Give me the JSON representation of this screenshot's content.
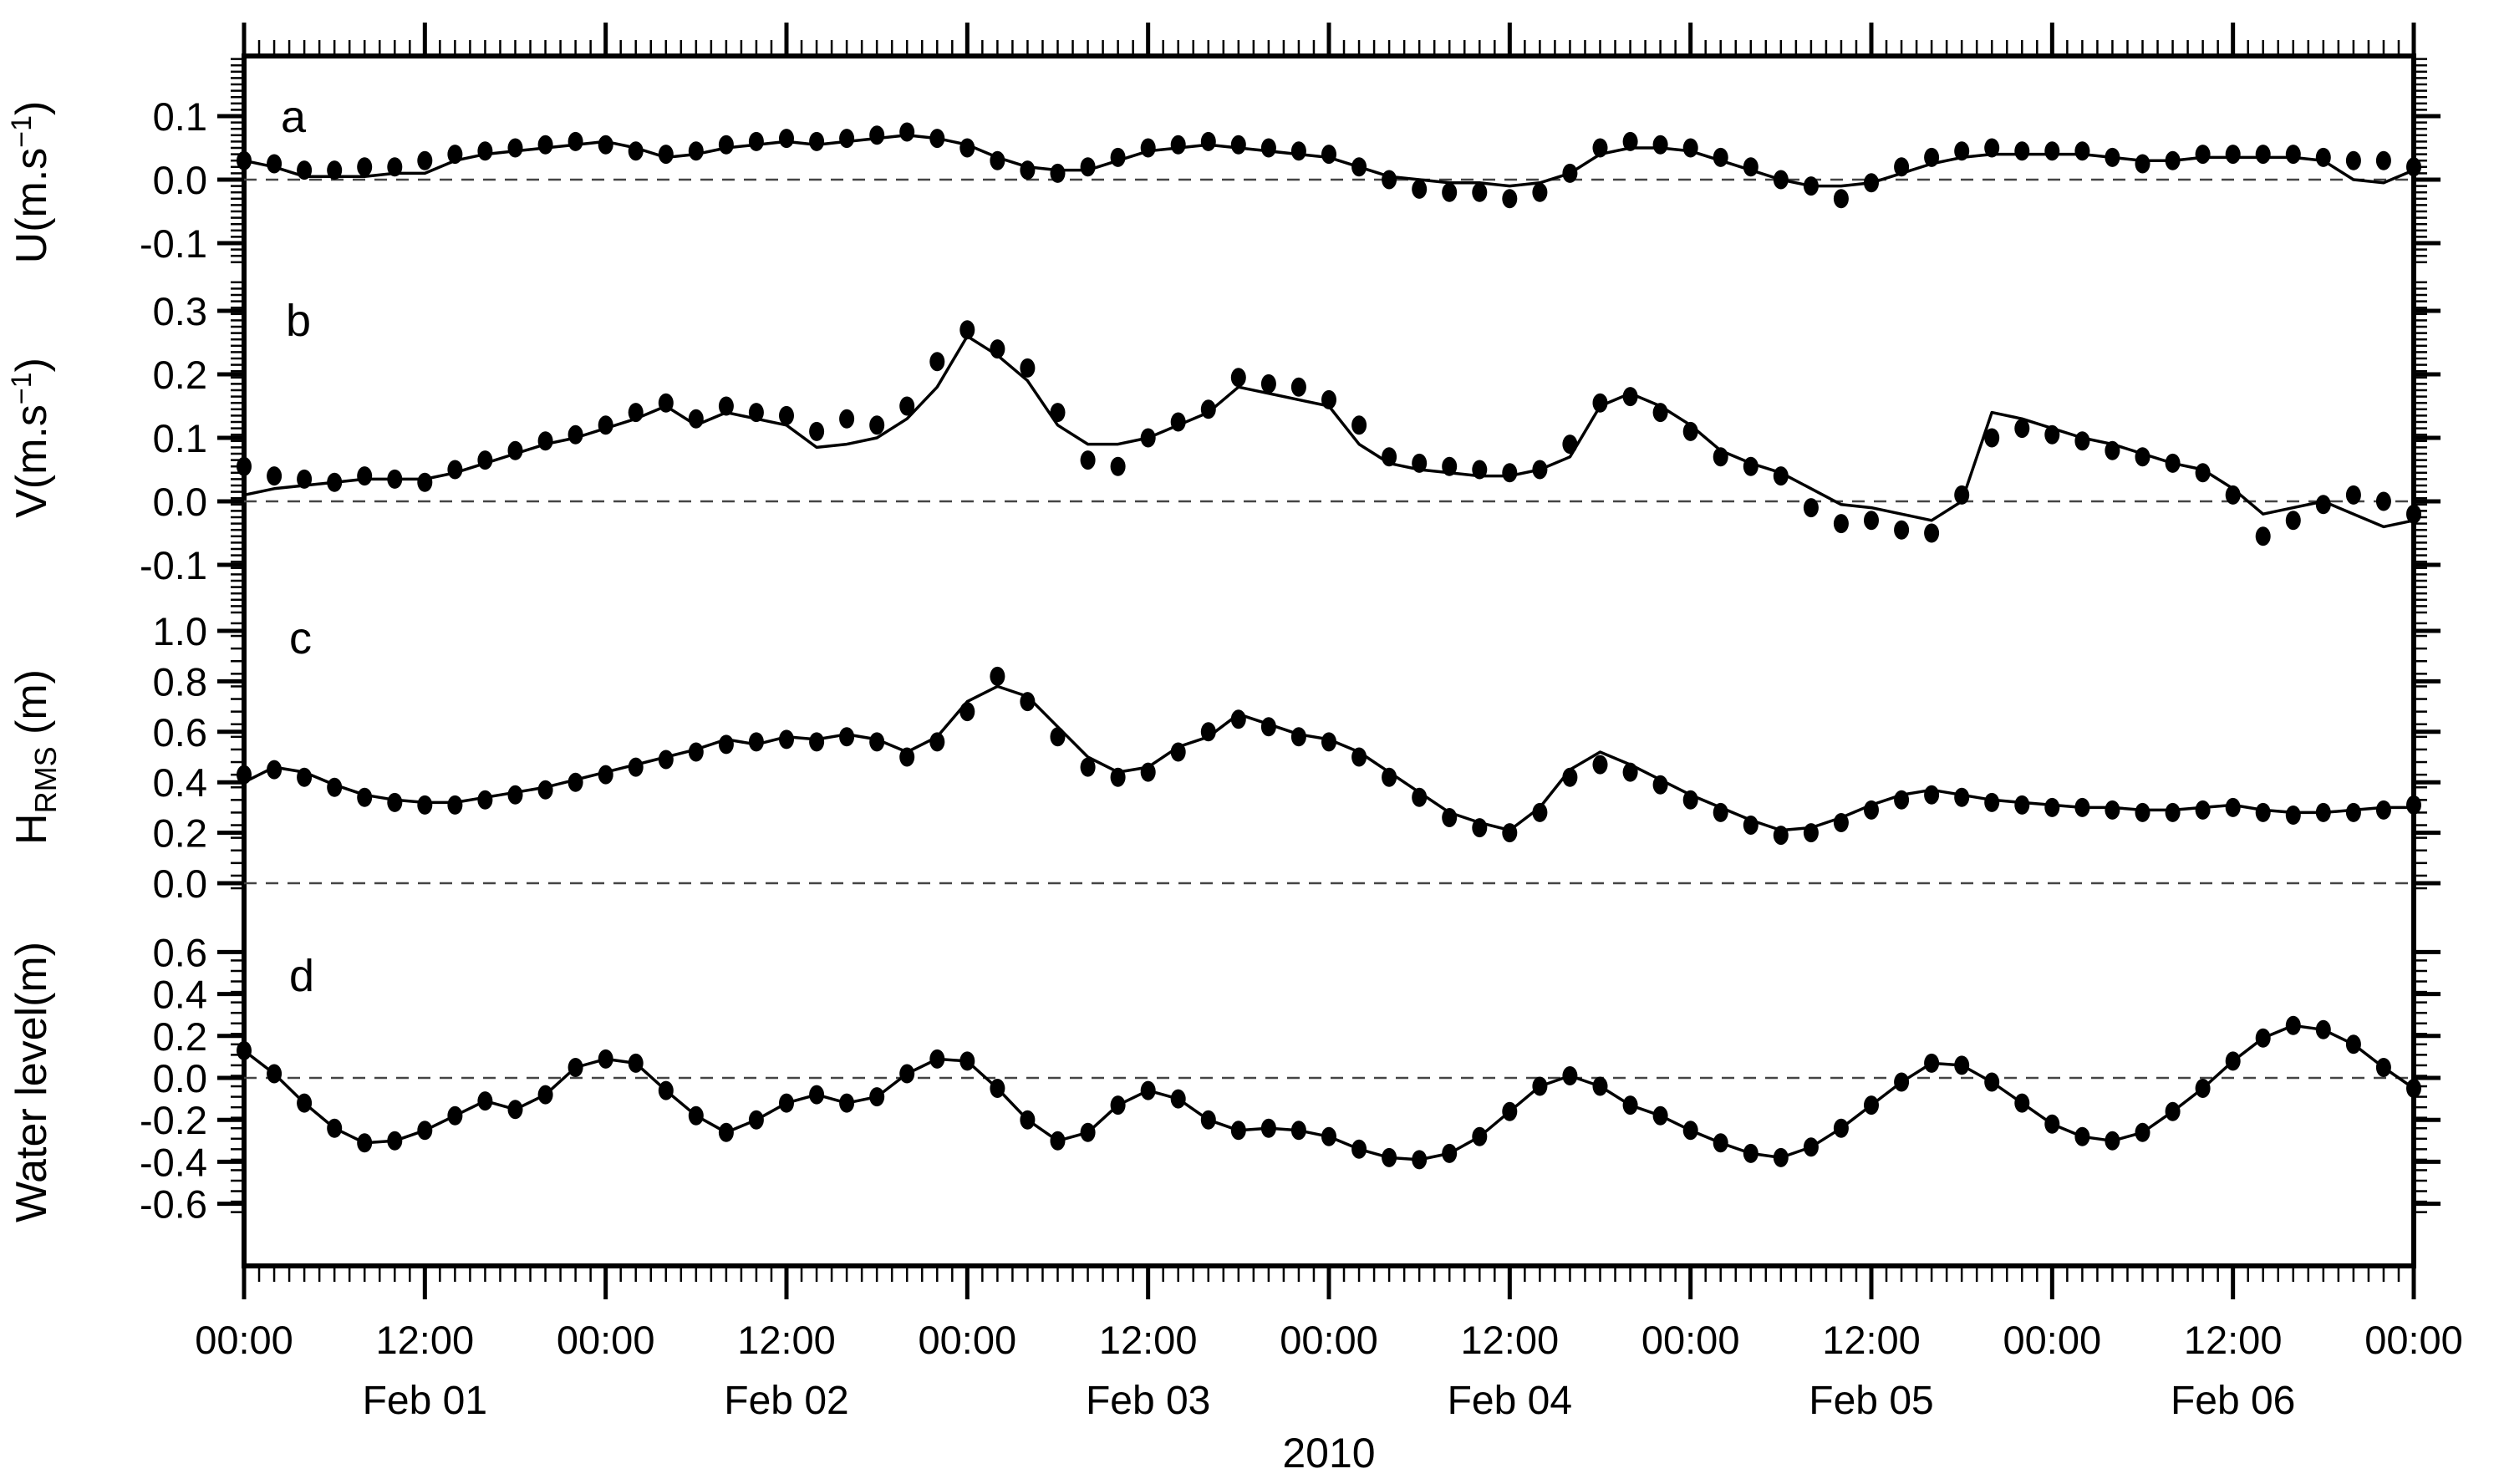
{
  "figure": {
    "year": "2010",
    "background": "#ffffff",
    "ink_color": "#000000",
    "dashed_line_color": "#444444",
    "x_axis": {
      "hours_start": 0,
      "hours_end": 144,
      "minor_tick_hours": 1,
      "major_tick_hours": 12,
      "tick_labels": [
        {
          "hour": 0,
          "label": "00:00"
        },
        {
          "hour": 12,
          "label": "12:00"
        },
        {
          "hour": 24,
          "label": "00:00"
        },
        {
          "hour": 36,
          "label": "12:00"
        },
        {
          "hour": 48,
          "label": "00:00"
        },
        {
          "hour": 60,
          "label": "12:00"
        },
        {
          "hour": 72,
          "label": "00:00"
        },
        {
          "hour": 84,
          "label": "12:00"
        },
        {
          "hour": 96,
          "label": "00:00"
        },
        {
          "hour": 108,
          "label": "12:00"
        },
        {
          "hour": 120,
          "label": "00:00"
        },
        {
          "hour": 132,
          "label": "12:00"
        },
        {
          "hour": 144,
          "label": "00:00"
        }
      ],
      "day_labels": [
        {
          "hour": 12,
          "label": "Feb 01"
        },
        {
          "hour": 36,
          "label": "Feb 02"
        },
        {
          "hour": 60,
          "label": "Feb 03"
        },
        {
          "hour": 84,
          "label": "Feb 04"
        },
        {
          "hour": 108,
          "label": "Feb 05"
        },
        {
          "hour": 132,
          "label": "Feb 06"
        }
      ]
    }
  },
  "chart_data": [
    {
      "type": "line",
      "panel_label": "a",
      "ylabel": {
        "pre": "U(m.s",
        "sup": "−1",
        "sub": "",
        "post": ")"
      },
      "ylim": [
        -0.15,
        0.2
      ],
      "yticks": [
        0.1,
        0.0,
        -0.1
      ],
      "ytick_labels": [
        "0.1",
        "0.0",
        "-0.1"
      ],
      "ytick_minor_step": 0.01,
      "zero_line": true,
      "x_hours": {
        "start": 0,
        "step": 2,
        "count": 73,
        "unit": "hours since Feb 01 2010 00:00"
      },
      "series": [
        {
          "name": "observed",
          "style": "dots",
          "values": [
            0.03,
            0.025,
            0.015,
            0.015,
            0.02,
            0.02,
            0.03,
            0.04,
            0.045,
            0.05,
            0.055,
            0.06,
            0.055,
            0.045,
            0.04,
            0.045,
            0.055,
            0.06,
            0.065,
            0.06,
            0.065,
            0.07,
            0.075,
            0.065,
            0.05,
            0.03,
            0.015,
            0.01,
            0.02,
            0.035,
            0.05,
            0.055,
            0.06,
            0.055,
            0.05,
            0.045,
            0.04,
            0.02,
            0.0,
            -0.015,
            -0.02,
            -0.02,
            -0.03,
            -0.02,
            0.01,
            0.05,
            0.06,
            0.055,
            0.05,
            0.035,
            0.02,
            0.0,
            -0.01,
            -0.03,
            -0.005,
            0.02,
            0.035,
            0.045,
            0.05,
            0.045,
            0.045,
            0.045,
            0.035,
            0.025,
            0.03,
            0.04,
            0.04,
            0.04,
            0.04,
            0.035,
            0.03,
            0.03,
            0.02
          ]
        },
        {
          "name": "modeled",
          "style": "line",
          "values": [
            0.03,
            0.02,
            0.005,
            0.005,
            0.005,
            0.01,
            0.01,
            0.03,
            0.04,
            0.045,
            0.05,
            0.055,
            0.06,
            0.05,
            0.035,
            0.04,
            0.05,
            0.055,
            0.06,
            0.055,
            0.06,
            0.065,
            0.07,
            0.065,
            0.055,
            0.035,
            0.02,
            0.015,
            0.015,
            0.03,
            0.045,
            0.05,
            0.055,
            0.05,
            0.045,
            0.04,
            0.035,
            0.02,
            0.005,
            0.0,
            -0.005,
            -0.005,
            -0.01,
            -0.005,
            0.01,
            0.04,
            0.05,
            0.05,
            0.045,
            0.03,
            0.015,
            0.0,
            -0.01,
            -0.01,
            -0.005,
            0.01,
            0.025,
            0.035,
            0.04,
            0.04,
            0.04,
            0.04,
            0.035,
            0.03,
            0.03,
            0.035,
            0.035,
            0.035,
            0.035,
            0.03,
            0.0,
            -0.005,
            0.015
          ]
        }
      ]
    },
    {
      "type": "line",
      "panel_label": "b",
      "ylabel": {
        "pre": "V(m.s",
        "sup": "−1",
        "sub": "",
        "post": ")"
      },
      "ylim": [
        -0.18,
        0.35
      ],
      "yticks": [
        0.3,
        0.2,
        0.1,
        0.0,
        -0.1
      ],
      "ytick_labels": [
        "0.3",
        "0.2",
        "0.1",
        "0.0",
        "-0.1"
      ],
      "ytick_minor_step": 0.01,
      "zero_line": true,
      "x_hours": {
        "start": 0,
        "step": 2,
        "count": 73,
        "unit": "hours since Feb 01 2010 00:00"
      },
      "series": [
        {
          "name": "observed",
          "style": "dots",
          "values": [
            0.055,
            0.04,
            0.035,
            0.03,
            0.04,
            0.035,
            0.03,
            0.05,
            0.065,
            0.08,
            0.095,
            0.105,
            0.12,
            0.14,
            0.155,
            0.13,
            0.15,
            0.14,
            0.135,
            0.11,
            0.13,
            0.12,
            0.15,
            0.22,
            0.27,
            0.24,
            0.21,
            0.14,
            0.065,
            0.055,
            0.1,
            0.125,
            0.145,
            0.195,
            0.185,
            0.18,
            0.16,
            0.12,
            0.07,
            0.06,
            0.055,
            0.05,
            0.045,
            0.05,
            0.09,
            0.155,
            0.165,
            0.14,
            0.11,
            0.07,
            0.055,
            0.04,
            -0.01,
            -0.035,
            -0.03,
            -0.045,
            -0.05,
            0.01,
            0.1,
            0.115,
            0.105,
            0.095,
            0.08,
            0.07,
            0.06,
            0.045,
            0.01,
            -0.055,
            -0.03,
            -0.005,
            0.01,
            0.0,
            -0.02
          ]
        },
        {
          "name": "modeled",
          "style": "line",
          "values": [
            0.01,
            0.02,
            0.025,
            0.03,
            0.035,
            0.035,
            0.035,
            0.045,
            0.06,
            0.075,
            0.09,
            0.1,
            0.115,
            0.13,
            0.15,
            0.12,
            0.14,
            0.13,
            0.12,
            0.085,
            0.09,
            0.1,
            0.13,
            0.18,
            0.26,
            0.23,
            0.19,
            0.12,
            0.09,
            0.09,
            0.1,
            0.12,
            0.14,
            0.18,
            0.17,
            0.16,
            0.15,
            0.09,
            0.06,
            0.05,
            0.045,
            0.04,
            0.04,
            0.05,
            0.07,
            0.15,
            0.17,
            0.15,
            0.12,
            0.08,
            0.06,
            0.045,
            0.02,
            -0.005,
            -0.01,
            -0.02,
            -0.03,
            0.0,
            0.14,
            0.13,
            0.115,
            0.1,
            0.09,
            0.075,
            0.06,
            0.05,
            0.02,
            -0.02,
            -0.01,
            0.0,
            -0.02,
            -0.04,
            -0.03
          ]
        }
      ]
    },
    {
      "type": "line",
      "panel_label": "c",
      "ylabel": {
        "pre": "H",
        "sup": "",
        "sub": "RMS",
        "post": " (m)"
      },
      "ylim": [
        -0.05,
        1.08
      ],
      "yticks": [
        1.0,
        0.8,
        0.6,
        0.4,
        0.2,
        0.0
      ],
      "ytick_labels": [
        "1.0",
        "0.8",
        "0.6",
        "0.4",
        "0.2",
        "0.0"
      ],
      "ytick_minor_step": 0.05,
      "zero_line": true,
      "x_hours": {
        "start": 0,
        "step": 2,
        "count": 73,
        "unit": "hours since Feb 01 2010 00:00"
      },
      "series": [
        {
          "name": "observed",
          "style": "dots",
          "values": [
            0.43,
            0.45,
            0.42,
            0.38,
            0.34,
            0.32,
            0.31,
            0.31,
            0.33,
            0.35,
            0.37,
            0.4,
            0.43,
            0.46,
            0.49,
            0.52,
            0.55,
            0.56,
            0.57,
            0.56,
            0.58,
            0.56,
            0.5,
            0.56,
            0.68,
            0.82,
            0.72,
            0.58,
            0.46,
            0.42,
            0.44,
            0.52,
            0.6,
            0.65,
            0.62,
            0.58,
            0.56,
            0.5,
            0.42,
            0.34,
            0.26,
            0.22,
            0.2,
            0.28,
            0.42,
            0.47,
            0.44,
            0.39,
            0.33,
            0.28,
            0.23,
            0.19,
            0.2,
            0.24,
            0.29,
            0.33,
            0.35,
            0.34,
            0.32,
            0.31,
            0.3,
            0.3,
            0.29,
            0.28,
            0.28,
            0.29,
            0.3,
            0.28,
            0.27,
            0.28,
            0.28,
            0.29,
            0.31
          ]
        },
        {
          "name": "modeled",
          "style": "line",
          "values": [
            0.4,
            0.46,
            0.44,
            0.39,
            0.35,
            0.33,
            0.32,
            0.32,
            0.34,
            0.36,
            0.38,
            0.41,
            0.44,
            0.47,
            0.5,
            0.53,
            0.57,
            0.55,
            0.58,
            0.57,
            0.59,
            0.57,
            0.52,
            0.58,
            0.72,
            0.78,
            0.74,
            0.62,
            0.5,
            0.44,
            0.46,
            0.54,
            0.58,
            0.67,
            0.63,
            0.59,
            0.57,
            0.52,
            0.44,
            0.36,
            0.28,
            0.24,
            0.21,
            0.3,
            0.45,
            0.52,
            0.47,
            0.41,
            0.35,
            0.3,
            0.25,
            0.21,
            0.22,
            0.26,
            0.31,
            0.35,
            0.37,
            0.35,
            0.33,
            0.32,
            0.31,
            0.3,
            0.3,
            0.29,
            0.29,
            0.3,
            0.31,
            0.29,
            0.28,
            0.28,
            0.29,
            0.3,
            0.3
          ]
        }
      ]
    },
    {
      "type": "line",
      "panel_label": "d",
      "ylabel": {
        "pre": "Water level(m)",
        "sup": "",
        "sub": "",
        "post": ""
      },
      "ylim": [
        -0.7,
        0.62
      ],
      "yticks": [
        0.6,
        0.4,
        0.2,
        0.0,
        -0.2,
        -0.4,
        -0.6
      ],
      "ytick_labels": [
        "0.6",
        "0.4",
        "0.2",
        "0.0",
        "-0.2",
        "-0.4",
        "-0.6"
      ],
      "ytick_minor_step": 0.05,
      "zero_line": true,
      "x_hours": {
        "start": 0,
        "step": 2,
        "count": 73,
        "unit": "hours since Feb 01 2010 00:00"
      },
      "series": [
        {
          "name": "observed",
          "style": "dots",
          "values": [
            0.13,
            0.02,
            -0.12,
            -0.24,
            -0.31,
            -0.3,
            -0.25,
            -0.18,
            -0.11,
            -0.15,
            -0.08,
            0.05,
            0.09,
            0.07,
            -0.06,
            -0.18,
            -0.26,
            -0.2,
            -0.12,
            -0.08,
            -0.12,
            -0.09,
            0.02,
            0.09,
            0.08,
            -0.05,
            -0.2,
            -0.3,
            -0.26,
            -0.13,
            -0.06,
            -0.1,
            -0.2,
            -0.25,
            -0.24,
            -0.25,
            -0.28,
            -0.34,
            -0.38,
            -0.39,
            -0.36,
            -0.28,
            -0.16,
            -0.04,
            0.01,
            -0.04,
            -0.13,
            -0.18,
            -0.25,
            -0.31,
            -0.36,
            -0.38,
            -0.33,
            -0.24,
            -0.13,
            -0.02,
            0.07,
            0.06,
            -0.02,
            -0.12,
            -0.22,
            -0.28,
            -0.3,
            -0.26,
            -0.16,
            -0.05,
            0.08,
            0.19,
            0.25,
            0.23,
            0.16,
            0.05,
            -0.05
          ]
        },
        {
          "name": "modeled",
          "style": "line",
          "values": [
            0.13,
            0.02,
            -0.12,
            -0.24,
            -0.31,
            -0.3,
            -0.25,
            -0.18,
            -0.11,
            -0.15,
            -0.08,
            0.05,
            0.09,
            0.07,
            -0.06,
            -0.18,
            -0.26,
            -0.2,
            -0.12,
            -0.08,
            -0.12,
            -0.09,
            0.02,
            0.09,
            0.08,
            -0.05,
            -0.2,
            -0.3,
            -0.26,
            -0.13,
            -0.06,
            -0.1,
            -0.2,
            -0.25,
            -0.24,
            -0.25,
            -0.28,
            -0.34,
            -0.38,
            -0.39,
            -0.36,
            -0.28,
            -0.16,
            -0.04,
            0.01,
            -0.04,
            -0.13,
            -0.18,
            -0.25,
            -0.31,
            -0.36,
            -0.38,
            -0.33,
            -0.24,
            -0.13,
            -0.02,
            0.07,
            0.06,
            -0.02,
            -0.12,
            -0.22,
            -0.28,
            -0.3,
            -0.26,
            -0.16,
            -0.05,
            0.08,
            0.19,
            0.25,
            0.23,
            0.16,
            0.05,
            -0.05
          ]
        }
      ]
    }
  ]
}
